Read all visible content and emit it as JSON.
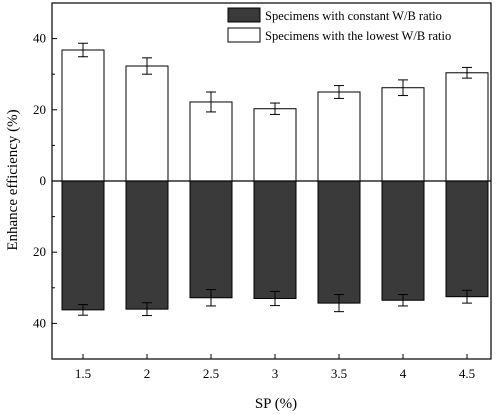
{
  "chart_data": {
    "type": "bar",
    "xlabel": "SP (%)",
    "ylabel": "Enhance efficiency (%)",
    "ylim": [
      -50,
      50
    ],
    "y_ticks": [
      -40,
      -20,
      0,
      20,
      40
    ],
    "y_tick_labels": [
      "40",
      "20",
      "0",
      "20",
      "40"
    ],
    "categories": [
      "1.5",
      "2",
      "2.5",
      "3",
      "3.5",
      "4",
      "4.5"
    ],
    "series": [
      {
        "name": "Specimens with constant W/B ratio",
        "color": "#3a3a3a",
        "direction": "down",
        "values": [
          36.2,
          36.0,
          32.8,
          33.0,
          34.3,
          33.5,
          32.5
        ],
        "errors": [
          1.5,
          1.8,
          2.3,
          2.0,
          2.4,
          1.6,
          1.8
        ]
      },
      {
        "name": "Specimens with the lowest W/B ratio",
        "color": "#ffffff",
        "direction": "up",
        "values": [
          36.8,
          32.3,
          22.2,
          20.3,
          25.0,
          26.2,
          30.4
        ],
        "errors": [
          1.9,
          2.3,
          2.8,
          1.6,
          1.8,
          2.2,
          1.5
        ]
      }
    ],
    "grid": false,
    "legend_position": "top-right"
  }
}
